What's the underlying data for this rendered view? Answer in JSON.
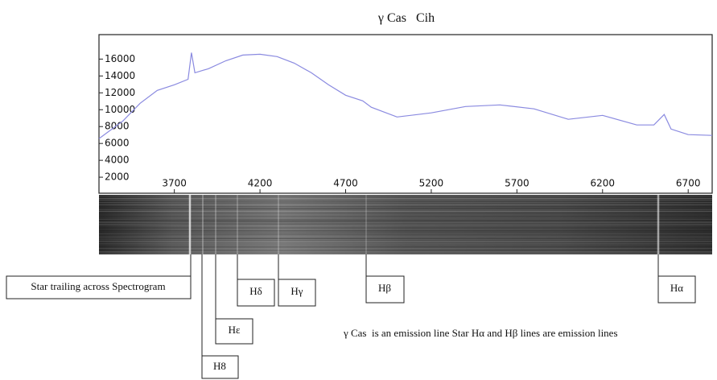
{
  "chart_data": {
    "type": "line",
    "title": "γ Cas   Cih",
    "x": [
      3260,
      3400,
      3500,
      3600,
      3700,
      3780,
      3800,
      3820,
      3900,
      4000,
      4100,
      4200,
      4300,
      4400,
      4500,
      4600,
      4700,
      4800,
      4850,
      5000,
      5200,
      5400,
      5600,
      5800,
      6000,
      6200,
      6400,
      6500,
      6560,
      6600,
      6700,
      6840
    ],
    "series": [
      {
        "color": "#8a8ae0",
        "values": [
          6570,
          8670,
          10760,
          12290,
          12950,
          13600,
          16760,
          14380,
          14860,
          15800,
          16480,
          16570,
          16290,
          15520,
          14380,
          12950,
          11710,
          11050,
          10290,
          9140,
          9620,
          10380,
          10570,
          10100,
          8860,
          9330,
          8190,
          8190,
          9430,
          7710,
          7050,
          6950
        ]
      }
    ],
    "xlim": [
      3260,
      6840
    ],
    "ylim": [
      100,
      18900
    ],
    "xticks": [
      3700,
      4200,
      4700,
      5200,
      5700,
      6200,
      6700
    ],
    "yticks": [
      2000,
      4000,
      6000,
      8000,
      10000,
      12000,
      14000,
      16000
    ],
    "annotations": [
      "Star trailing across Spectrogram",
      "H8",
      "Hε",
      "Hδ",
      "Hγ",
      "Hβ",
      "Hα",
      "γ Cas  is an emission line Star Hα and Hβ lines are emission lines"
    ]
  }
}
